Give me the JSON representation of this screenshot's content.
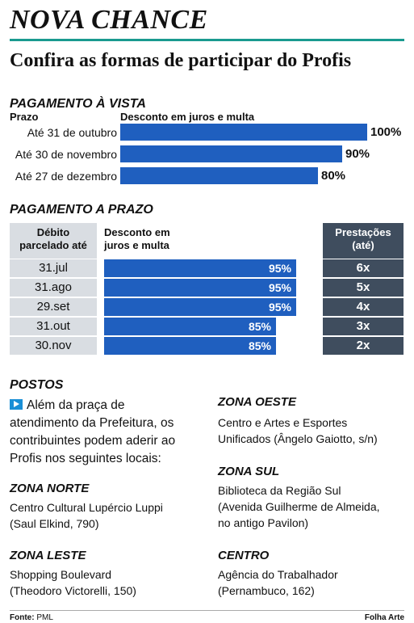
{
  "header": {
    "title": "NOVA CHANCE",
    "subtitle": "Confira as formas de participar do Profis"
  },
  "colors": {
    "accent_rule": "#1a9a8f",
    "bar": "#1f5fbf",
    "table_gray": "#d9dde2",
    "table_dark": "#3f4d5e",
    "arrow": "#1a8fd6"
  },
  "chart_data": [
    {
      "type": "bar",
      "title": "PAGAMENTO À VISTA",
      "xlabel": "Desconto em juros e multa",
      "ylabel": "Prazo",
      "categories": [
        "Até 31 de outubro",
        "Até 30 de novembro",
        "Até 27 de dezembro"
      ],
      "values": [
        100,
        90,
        80
      ],
      "value_labels": [
        "100%",
        "90%",
        "80%"
      ],
      "xlim": [
        0,
        100
      ]
    },
    {
      "type": "table",
      "title": "PAGAMENTO A PRAZO",
      "columns": [
        "Débito parcelado até",
        "Desconto em juros e multa",
        "Prestações (até)"
      ],
      "col1_header_lines": [
        "Débito",
        "parcelado até"
      ],
      "col2_header_lines": [
        "Desconto em",
        "juros e multa"
      ],
      "col3_header_lines": [
        "Prestações",
        "(até)"
      ],
      "categories": [
        "31.jul",
        "31.ago",
        "29.set",
        "31.out",
        "30.nov"
      ],
      "values": [
        95,
        95,
        95,
        85,
        85
      ],
      "value_labels": [
        "95%",
        "95%",
        "95%",
        "85%",
        "85%"
      ],
      "installments": [
        "6x",
        "5x",
        "4x",
        "3x",
        "2x"
      ],
      "xlim": [
        0,
        100
      ]
    }
  ],
  "postos": {
    "title": "POSTOS",
    "intro_lines": [
      "Além da praça de",
      "atendimento da Prefeitura, os",
      "contribuintes podem aderir ao",
      "Profis nos seguintes locais:"
    ],
    "zones": [
      {
        "name": "ZONA NORTE",
        "lines": [
          "Centro Cultural Lupércio Luppi",
          "(Saul Elkind, 790)"
        ]
      },
      {
        "name": "ZONA LESTE",
        "lines": [
          "Shopping Boulevard",
          "(Theodoro Victorelli, 150)"
        ]
      },
      {
        "name": "ZONA OESTE",
        "lines": [
          "Centro e Artes e Esportes",
          "Unificados (Ângelo Gaiotto, s/n)"
        ]
      },
      {
        "name": "ZONA SUL",
        "lines": [
          "Biblioteca da Região Sul",
          "(Avenida Guilherme de Almeida,",
          "no antigo Pavilon)"
        ]
      },
      {
        "name": "CENTRO",
        "lines": [
          "Agência do Trabalhador",
          "(Pernambuco, 162)"
        ]
      }
    ]
  },
  "footer": {
    "source_label": "Fonte:",
    "source_value": "PML",
    "credit": "Folha Arte"
  }
}
